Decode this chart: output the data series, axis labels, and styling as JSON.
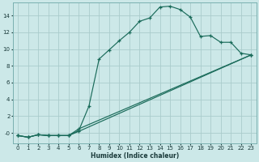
{
  "xlabel": "Humidex (Indice chaleur)",
  "bg_color": "#cce8e8",
  "grid_color": "#aacccc",
  "line_color": "#1a6b5a",
  "xlim": [
    -0.5,
    23.5
  ],
  "ylim": [
    -1.2,
    15.5
  ],
  "xticks": [
    0,
    1,
    2,
    3,
    4,
    5,
    6,
    7,
    8,
    9,
    10,
    11,
    12,
    13,
    14,
    15,
    16,
    17,
    18,
    19,
    20,
    21,
    22,
    23
  ],
  "yticks": [
    0,
    2,
    4,
    6,
    8,
    10,
    12,
    14
  ],
  "ytick_labels": [
    "-0",
    "2",
    "4",
    "6",
    "8",
    "10",
    "12",
    "14"
  ],
  "curve1_x": [
    0,
    1,
    2,
    3,
    4,
    5,
    6,
    7,
    8,
    9,
    10,
    11,
    12,
    13,
    14,
    15,
    16,
    17,
    18,
    19,
    20,
    21,
    22,
    23
  ],
  "curve1_y": [
    -0.3,
    -0.5,
    -0.2,
    -0.3,
    -0.3,
    -0.3,
    0.3,
    3.2,
    8.8,
    9.9,
    11.0,
    12.0,
    13.3,
    13.7,
    15.0,
    15.1,
    14.7,
    13.8,
    11.5,
    11.6,
    10.8,
    10.8,
    9.5,
    9.3
  ],
  "curve2_x": [
    0,
    1,
    2,
    3,
    4,
    5,
    6,
    23
  ],
  "curve2_y": [
    -0.3,
    -0.5,
    -0.2,
    -0.3,
    -0.3,
    -0.3,
    0.5,
    9.3
  ],
  "curve3_x": [
    0,
    1,
    2,
    3,
    4,
    5,
    6,
    23
  ],
  "curve3_y": [
    -0.3,
    -0.5,
    -0.2,
    -0.3,
    -0.3,
    -0.3,
    0.2,
    9.3
  ]
}
